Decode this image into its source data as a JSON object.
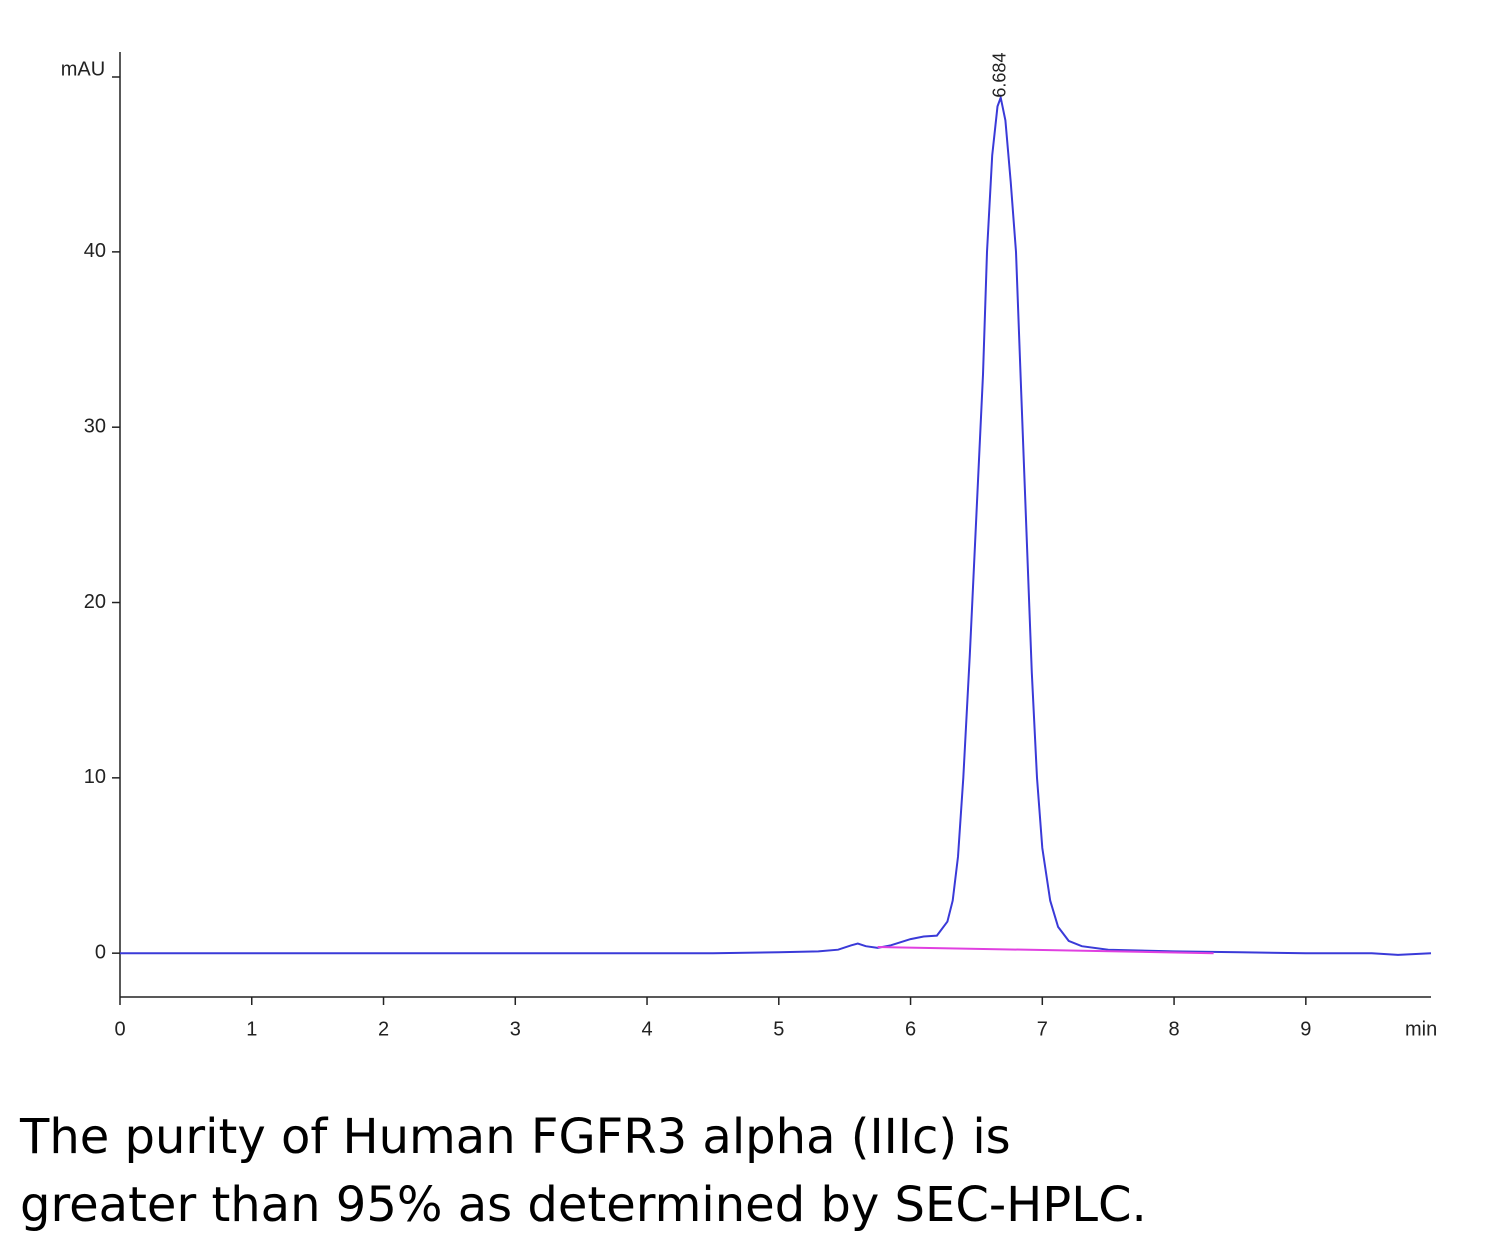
{
  "chart_data": {
    "type": "line",
    "xlabel": "min",
    "ylabel": "mAU",
    "xlim": [
      0,
      9.95
    ],
    "ylim": [
      -2.5,
      51.4
    ],
    "xticks": [
      0,
      1,
      2,
      3,
      4,
      5,
      6,
      7,
      8,
      9
    ],
    "yticks": [
      0,
      10,
      20,
      30,
      40
    ],
    "series": [
      {
        "color": "#3a3ad8",
        "x": [
          0,
          0.5,
          1,
          1.5,
          2,
          2.5,
          3,
          3.5,
          4,
          4.5,
          5,
          5.3,
          5.45,
          5.55,
          5.6,
          5.66,
          5.75,
          5.85,
          6.0,
          6.1,
          6.2,
          6.28,
          6.32,
          6.36,
          6.4,
          6.45,
          6.5,
          6.55,
          6.58,
          6.62,
          6.66,
          6.684,
          6.72,
          6.76,
          6.8,
          6.84,
          6.88,
          6.92,
          6.96,
          7.0,
          7.06,
          7.12,
          7.2,
          7.3,
          7.5,
          8.0,
          8.5,
          9.0,
          9.5,
          9.7,
          9.95
        ],
        "values": [
          0,
          0,
          0,
          0,
          0,
          0,
          0,
          0,
          0,
          0,
          0.05,
          0.1,
          0.2,
          0.45,
          0.55,
          0.4,
          0.3,
          0.45,
          0.8,
          0.95,
          1.0,
          1.8,
          3,
          5.5,
          10,
          17,
          25,
          33,
          40,
          45.5,
          48.3,
          48.8,
          47.5,
          44,
          40,
          32,
          24,
          16,
          10,
          6,
          3,
          1.5,
          0.7,
          0.4,
          0.2,
          0.1,
          0.05,
          0,
          0,
          -0.1,
          0
        ]
      },
      {
        "color": "#e040e0",
        "x": [
          5.75,
          8.3
        ],
        "values": [
          0.35,
          0
        ]
      }
    ],
    "annotations": [
      {
        "text": "6.684",
        "x": 6.684,
        "y": 48.8
      }
    ],
    "caption": [
      "The purity of Human FGFR3 alpha (IIIc) is",
      "greater than 95% as determined by SEC-HPLC."
    ]
  }
}
